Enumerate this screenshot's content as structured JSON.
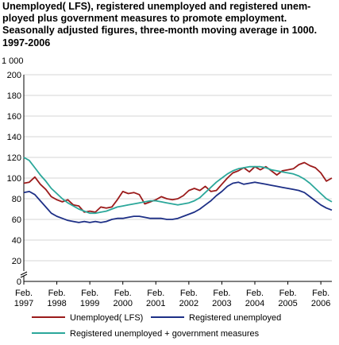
{
  "chart_data": {
    "type": "line",
    "title_lines": [
      "Unemployed( LFS), registered unemployed and registered unem-",
      "ployed plus government measures to promote employment.",
      "Seasonally adjusted figures, three-month moving average in 1000.",
      "1997-2006"
    ],
    "y_unit": "1 000",
    "ylim": [
      0,
      200
    ],
    "y_ticks": [
      0,
      20,
      40,
      60,
      80,
      100,
      120,
      140,
      160,
      180,
      200
    ],
    "y_axis_break": true,
    "xlim": [
      0,
      112
    ],
    "x_tick_labels": [
      {
        "x": 0,
        "line1": "Feb.",
        "line2": "1997"
      },
      {
        "x": 12,
        "line1": "Feb.",
        "line2": "1998"
      },
      {
        "x": 24,
        "line1": "Feb.",
        "line2": "1999"
      },
      {
        "x": 36,
        "line1": "Feb.",
        "line2": "2000"
      },
      {
        "x": 48,
        "line1": "Feb.",
        "line2": "2001"
      },
      {
        "x": 60,
        "line1": "Feb.",
        "line2": "2002"
      },
      {
        "x": 72,
        "line1": "Feb.",
        "line2": "2003"
      },
      {
        "x": 84,
        "line1": "Feb.",
        "line2": "2004"
      },
      {
        "x": 96,
        "line1": "Feb.",
        "line2": "2005"
      },
      {
        "x": 108,
        "line1": "Feb.",
        "line2": "2006"
      }
    ],
    "grid": true,
    "legend_position": "bottom",
    "series": [
      {
        "name": "Unemployed( LFS)",
        "color": "#9b1b1b",
        "values": [
          [
            0,
            95
          ],
          [
            2,
            96
          ],
          [
            4,
            101
          ],
          [
            6,
            94
          ],
          [
            8,
            89
          ],
          [
            10,
            82
          ],
          [
            12,
            79
          ],
          [
            14,
            77
          ],
          [
            16,
            79
          ],
          [
            18,
            74
          ],
          [
            20,
            73
          ],
          [
            22,
            67
          ],
          [
            24,
            68
          ],
          [
            26,
            67
          ],
          [
            28,
            72
          ],
          [
            30,
            71
          ],
          [
            32,
            72
          ],
          [
            34,
            79
          ],
          [
            36,
            87
          ],
          [
            38,
            85
          ],
          [
            40,
            86
          ],
          [
            42,
            84
          ],
          [
            44,
            75
          ],
          [
            46,
            77
          ],
          [
            48,
            79
          ],
          [
            50,
            82
          ],
          [
            52,
            80
          ],
          [
            54,
            79
          ],
          [
            56,
            80
          ],
          [
            58,
            83
          ],
          [
            60,
            88
          ],
          [
            62,
            90
          ],
          [
            64,
            88
          ],
          [
            66,
            92
          ],
          [
            68,
            87
          ],
          [
            70,
            88
          ],
          [
            72,
            94
          ],
          [
            74,
            100
          ],
          [
            76,
            105
          ],
          [
            78,
            107
          ],
          [
            80,
            110
          ],
          [
            82,
            106
          ],
          [
            84,
            111
          ],
          [
            86,
            108
          ],
          [
            88,
            111
          ],
          [
            90,
            107
          ],
          [
            92,
            103
          ],
          [
            94,
            107
          ],
          [
            96,
            108
          ],
          [
            98,
            109
          ],
          [
            100,
            113
          ],
          [
            102,
            115
          ],
          [
            104,
            112
          ],
          [
            106,
            110
          ],
          [
            108,
            105
          ],
          [
            110,
            97
          ],
          [
            112,
            100
          ]
        ]
      },
      {
        "name": "Registered unemployed",
        "color": "#1d2f86",
        "values": [
          [
            0,
            86
          ],
          [
            2,
            87
          ],
          [
            4,
            84
          ],
          [
            6,
            78
          ],
          [
            8,
            72
          ],
          [
            10,
            66
          ],
          [
            12,
            63
          ],
          [
            14,
            61
          ],
          [
            16,
            59
          ],
          [
            18,
            58
          ],
          [
            20,
            57
          ],
          [
            22,
            58
          ],
          [
            24,
            57
          ],
          [
            26,
            58
          ],
          [
            28,
            57
          ],
          [
            30,
            58
          ],
          [
            32,
            60
          ],
          [
            34,
            61
          ],
          [
            36,
            61
          ],
          [
            38,
            62
          ],
          [
            40,
            63
          ],
          [
            42,
            63
          ],
          [
            44,
            62
          ],
          [
            46,
            61
          ],
          [
            48,
            61
          ],
          [
            50,
            61
          ],
          [
            52,
            60
          ],
          [
            54,
            60
          ],
          [
            56,
            61
          ],
          [
            58,
            63
          ],
          [
            60,
            65
          ],
          [
            62,
            67
          ],
          [
            64,
            70
          ],
          [
            66,
            74
          ],
          [
            68,
            78
          ],
          [
            70,
            83
          ],
          [
            72,
            87
          ],
          [
            74,
            92
          ],
          [
            76,
            95
          ],
          [
            78,
            96
          ],
          [
            80,
            94
          ],
          [
            82,
            95
          ],
          [
            84,
            96
          ],
          [
            86,
            95
          ],
          [
            88,
            94
          ],
          [
            90,
            93
          ],
          [
            92,
            92
          ],
          [
            94,
            91
          ],
          [
            96,
            90
          ],
          [
            98,
            89
          ],
          [
            100,
            88
          ],
          [
            102,
            86
          ],
          [
            104,
            82
          ],
          [
            106,
            78
          ],
          [
            108,
            74
          ],
          [
            110,
            71
          ],
          [
            112,
            69
          ]
        ]
      },
      {
        "name": "Registered unemployed + government measures",
        "color": "#2ba79a",
        "values": [
          [
            0,
            120
          ],
          [
            2,
            117
          ],
          [
            4,
            110
          ],
          [
            6,
            103
          ],
          [
            8,
            97
          ],
          [
            10,
            90
          ],
          [
            12,
            85
          ],
          [
            14,
            80
          ],
          [
            16,
            76
          ],
          [
            18,
            73
          ],
          [
            20,
            70
          ],
          [
            22,
            68
          ],
          [
            24,
            66
          ],
          [
            26,
            66
          ],
          [
            28,
            67
          ],
          [
            30,
            68
          ],
          [
            32,
            70
          ],
          [
            34,
            72
          ],
          [
            36,
            73
          ],
          [
            38,
            74
          ],
          [
            40,
            75
          ],
          [
            42,
            76
          ],
          [
            44,
            77
          ],
          [
            46,
            78
          ],
          [
            48,
            78
          ],
          [
            50,
            77
          ],
          [
            52,
            76
          ],
          [
            54,
            75
          ],
          [
            56,
            74
          ],
          [
            58,
            75
          ],
          [
            60,
            76
          ],
          [
            62,
            78
          ],
          [
            64,
            81
          ],
          [
            66,
            86
          ],
          [
            68,
            91
          ],
          [
            70,
            96
          ],
          [
            72,
            100
          ],
          [
            74,
            104
          ],
          [
            76,
            107
          ],
          [
            78,
            109
          ],
          [
            80,
            110
          ],
          [
            82,
            111
          ],
          [
            84,
            111
          ],
          [
            86,
            111
          ],
          [
            88,
            110
          ],
          [
            90,
            108
          ],
          [
            92,
            107
          ],
          [
            94,
            106
          ],
          [
            96,
            105
          ],
          [
            98,
            104
          ],
          [
            100,
            102
          ],
          [
            102,
            99
          ],
          [
            104,
            95
          ],
          [
            106,
            90
          ],
          [
            108,
            85
          ],
          [
            110,
            80
          ],
          [
            112,
            77
          ]
        ]
      }
    ]
  }
}
